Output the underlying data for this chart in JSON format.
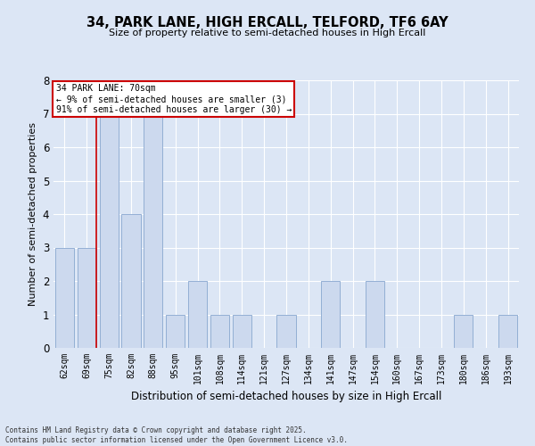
{
  "title1": "34, PARK LANE, HIGH ERCALL, TELFORD, TF6 6AY",
  "title2": "Size of property relative to semi-detached houses in High Ercall",
  "xlabel": "Distribution of semi-detached houses by size in High Ercall",
  "ylabel": "Number of semi-detached properties",
  "categories": [
    "62sqm",
    "69sqm",
    "75sqm",
    "82sqm",
    "88sqm",
    "95sqm",
    "101sqm",
    "108sqm",
    "114sqm",
    "121sqm",
    "127sqm",
    "134sqm",
    "141sqm",
    "147sqm",
    "154sqm",
    "160sqm",
    "167sqm",
    "173sqm",
    "180sqm",
    "186sqm",
    "193sqm"
  ],
  "values": [
    3,
    3,
    7,
    4,
    7,
    1,
    2,
    1,
    1,
    0,
    1,
    0,
    2,
    0,
    2,
    0,
    0,
    0,
    1,
    0,
    1
  ],
  "bar_color": "#ccd9ee",
  "bar_edge_color": "#93afd4",
  "background_color": "#dce6f5",
  "grid_color": "#ffffff",
  "annotation_text": "34 PARK LANE: 70sqm\n← 9% of semi-detached houses are smaller (3)\n91% of semi-detached houses are larger (30) →",
  "annotation_box_color": "#ffffff",
  "annotation_box_edge_color": "#cc0000",
  "red_line_color": "#cc0000",
  "footer1": "Contains HM Land Registry data © Crown copyright and database right 2025.",
  "footer2": "Contains public sector information licensed under the Open Government Licence v3.0.",
  "ylim": [
    0,
    8
  ],
  "yticks": [
    0,
    1,
    2,
    3,
    4,
    5,
    6,
    7,
    8
  ],
  "red_line_x": 1.425
}
